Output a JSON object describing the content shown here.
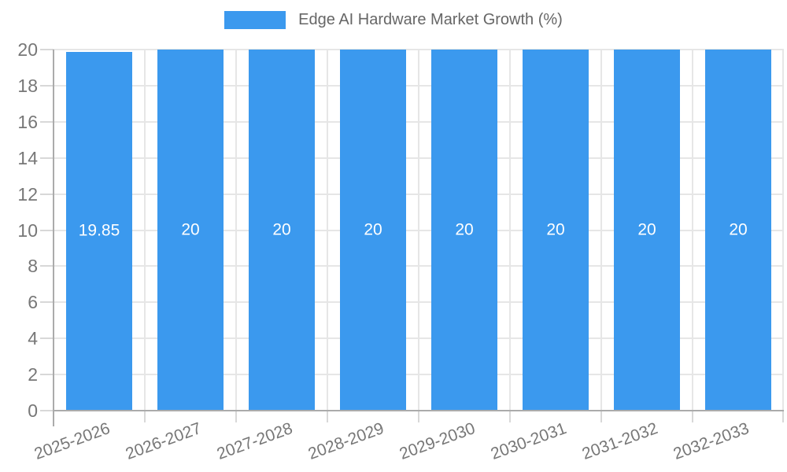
{
  "chart_data": {
    "type": "bar",
    "title": "Edge AI Hardware Market Growth (%)",
    "categories": [
      "2025-2026",
      "2026-2027",
      "2027-2028",
      "2028-2029",
      "2029-2030",
      "2030-2031",
      "2031-2032",
      "2032-2033"
    ],
    "values": [
      19.85,
      20,
      20,
      20,
      20,
      20,
      20,
      20
    ],
    "bar_labels": [
      "19.85",
      "20",
      "20",
      "20",
      "20",
      "20",
      "20",
      "20"
    ],
    "xlabel": "",
    "ylabel": "",
    "ylim": [
      0,
      20
    ],
    "y_ticks": [
      0,
      2,
      4,
      6,
      8,
      10,
      12,
      14,
      16,
      18,
      20
    ],
    "grid": true,
    "legend_position": "top",
    "legend_label": "Edge AI Hardware Market Growth (%)",
    "colors": {
      "bar": "#3B99EE",
      "gridline": "#E6E6E6",
      "axis_line": "#ABABAB",
      "tick_mark": "#D8D8D8",
      "tick_label": "#777777",
      "legend_text": "#666666",
      "value_label": "#FFFFFF",
      "background": "#FFFFFF"
    }
  }
}
